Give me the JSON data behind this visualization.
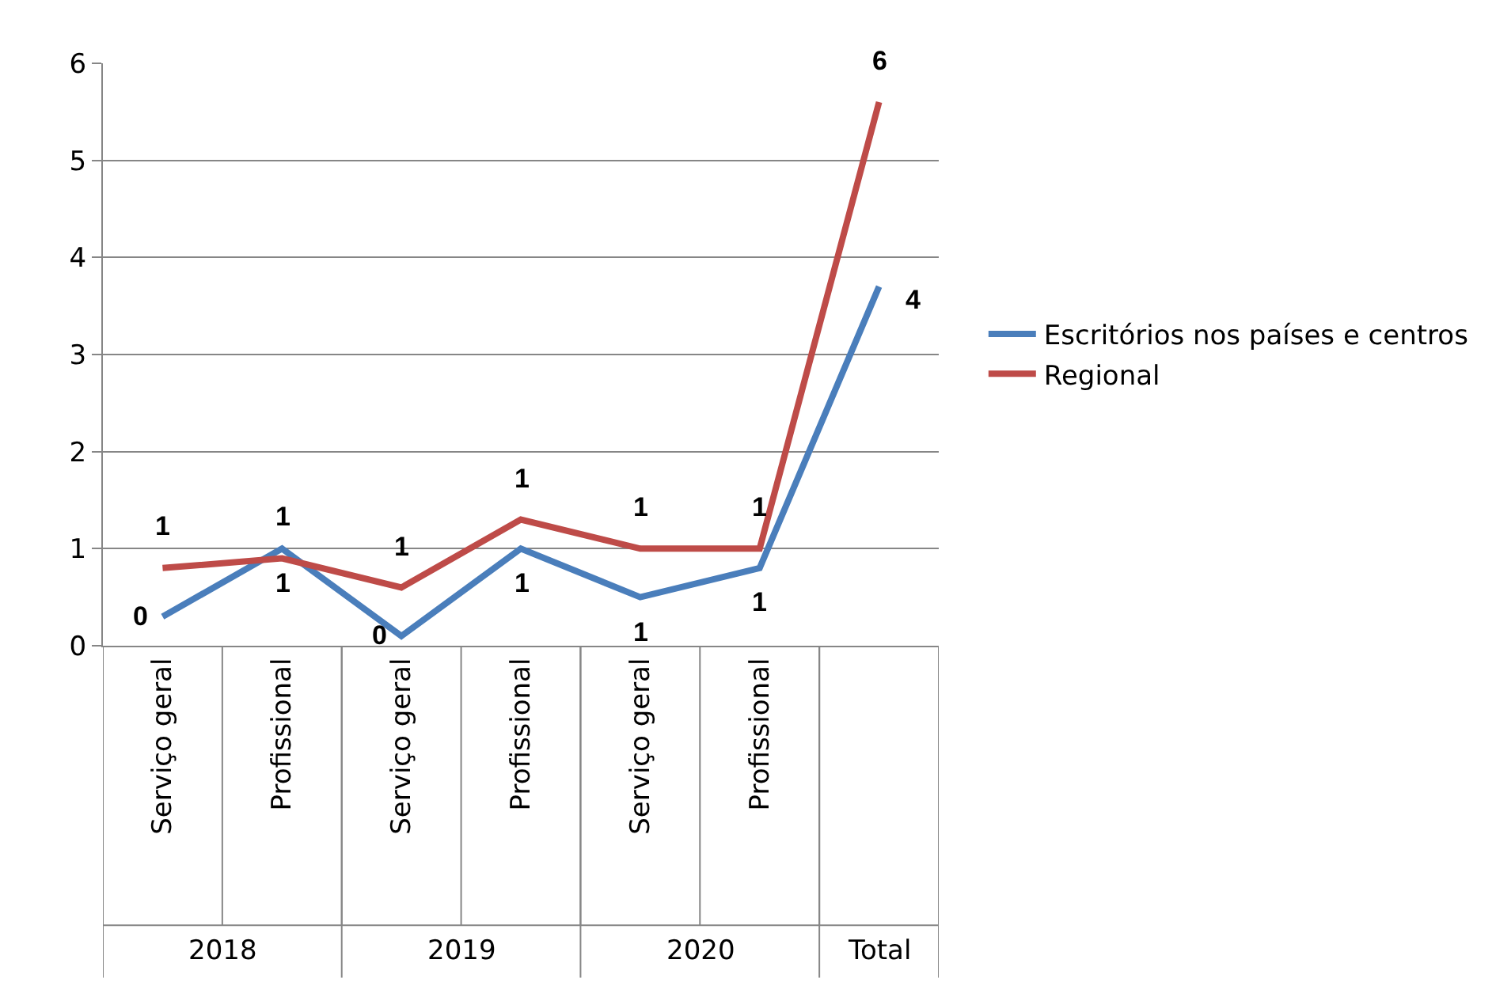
{
  "chart_data": {
    "type": "line",
    "categories": [
      "Serviço geral",
      "Profissional",
      "Serviço geral",
      "Profissional",
      "Serviço geral",
      "Profissional",
      null
    ],
    "annotations": [
      "2018",
      "2019",
      "2020",
      "Total"
    ],
    "series": [
      {
        "name": "Escritórios nos países e centros",
        "color": "#4a7ebb",
        "values": [
          0.3,
          1.0,
          0.1,
          1.0,
          0.5,
          0.8,
          3.7
        ],
        "value_labels": [
          "0",
          "1",
          "0",
          "1",
          "1",
          "1",
          "4"
        ]
      },
      {
        "name": "Regional",
        "color": "#be4b48",
        "values": [
          0.8,
          0.9,
          0.6,
          1.3,
          1.0,
          1.0,
          5.6
        ],
        "value_labels": [
          "1",
          "1",
          "1",
          "1",
          "1",
          "1",
          "6"
        ]
      }
    ],
    "ylim": [
      0,
      6
    ],
    "yticks": [
      0,
      1,
      2,
      3,
      4,
      5,
      6
    ],
    "grid": "y",
    "legend": "right",
    "marker": "none",
    "line_style": "solid"
  }
}
